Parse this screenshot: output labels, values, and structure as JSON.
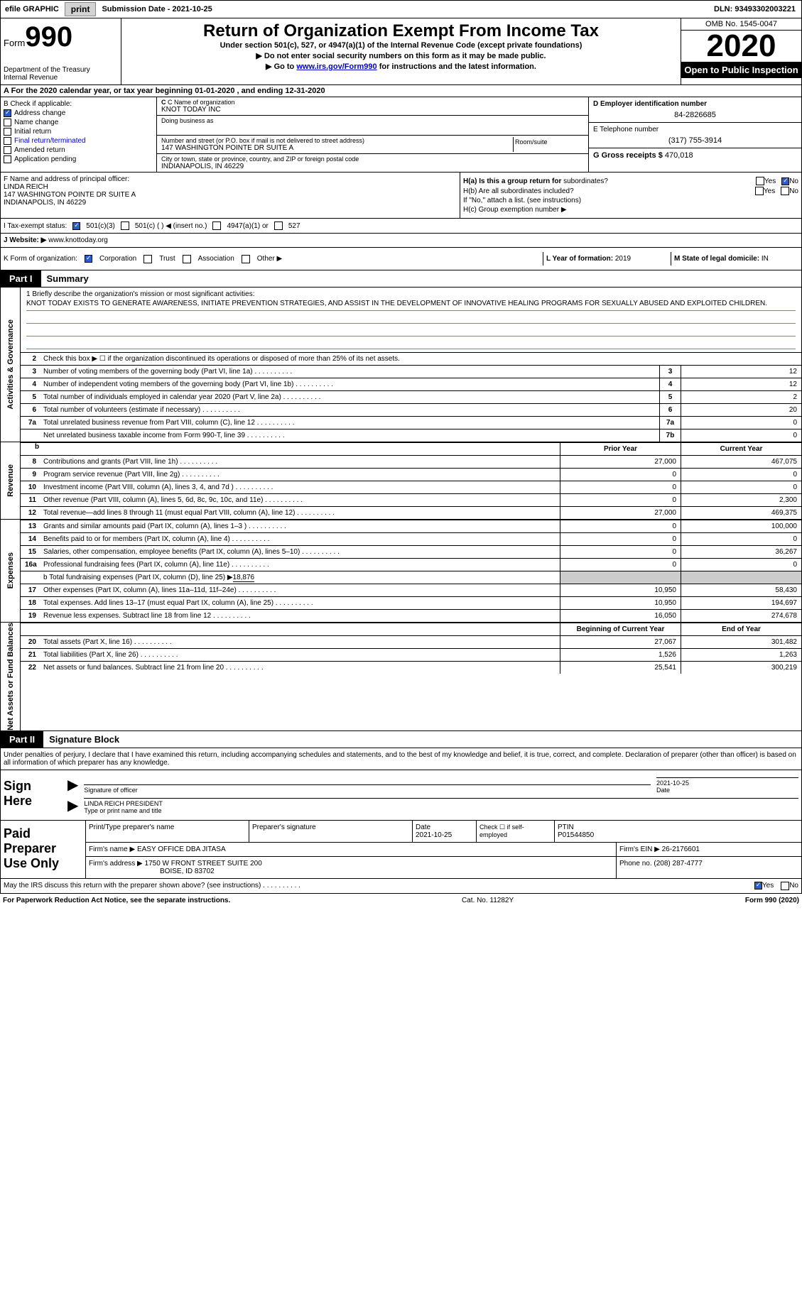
{
  "topbar": {
    "efile_label": "efile GRAPHIC",
    "print_btn": "print",
    "submission_label": "Submission Date - 2021-10-25",
    "dln": "DLN: 93493302003221"
  },
  "header": {
    "form_word": "Form",
    "form_num": "990",
    "dept": "Department of the Treasury\nInternal Revenue",
    "title": "Return of Organization Exempt From Income Tax",
    "subtitle": "Under section 501(c), 527, or 4947(a)(1) of the Internal Revenue Code (except private foundations)",
    "line1": "▶ Do not enter social security numbers on this form as it may be made public.",
    "line2_pre": "▶ Go to ",
    "line2_link": "www.irs.gov/Form990",
    "line2_post": " for instructions and the latest information.",
    "omb": "OMB No. 1545-0047",
    "year": "2020",
    "open_public": "Open to Public Inspection"
  },
  "row_a": "A For the 2020 calendar year, or tax year beginning 01-01-2020    , and ending 12-31-2020",
  "box_b": {
    "label": "B Check if applicable:",
    "address_change": "Address change",
    "name_change": "Name change",
    "initial_return": "Initial return",
    "final_return": "Final return/terminated",
    "amended_return": "Amended return",
    "application_pending": "Application pending"
  },
  "box_c": {
    "name_label": "C Name of organization",
    "name": "KNOT TODAY INC",
    "dba_label": "Doing business as",
    "dba": "",
    "street_label": "Number and street (or P.O. box if mail is not delivered to street address)",
    "street": "147 WASHINGTON POINTE DR SUITE A",
    "room_label": "Room/suite",
    "city_label": "City or town, state or province, country, and ZIP or foreign postal code",
    "city": "INDIANAPOLIS, IN  46229"
  },
  "box_d": {
    "ein_label": "D Employer identification number",
    "ein": "84-2826685",
    "phone_label": "E Telephone number",
    "phone": "(317) 755-3914",
    "gross_label": "G Gross receipts $",
    "gross": "470,018"
  },
  "box_f": {
    "label": "F  Name and address of principal officer:",
    "name": "LINDA REICH",
    "addr1": "147 WASHINGTON POINTE DR SUITE A",
    "addr2": "INDIANAPOLIS, IN  46229"
  },
  "box_h": {
    "ha_label": "H(a)  Is this a group return for",
    "ha_sub": "subordinates?",
    "hb_label": "H(b)  Are all subordinates included?",
    "hb_note": "If \"No,\" attach a list. (see instructions)",
    "hc_label": "H(c)  Group exemption number ▶",
    "yes": "Yes",
    "no": "No"
  },
  "row_i": {
    "label": "I    Tax-exempt status:",
    "opt1": "501(c)(3)",
    "opt2": "501(c) (  ) ◀ (insert no.)",
    "opt3": "4947(a)(1) or",
    "opt4": "527"
  },
  "row_j": {
    "label": "J   Website: ▶",
    "value": "www.knottoday.org"
  },
  "row_k": {
    "label": "K Form of organization:",
    "corp": "Corporation",
    "trust": "Trust",
    "assoc": "Association",
    "other": "Other ▶"
  },
  "row_l": {
    "label": "L Year of formation:",
    "value": "2019"
  },
  "row_m": {
    "label": "M State of legal domicile:",
    "value": "IN"
  },
  "part1": {
    "tag": "Part I",
    "title": "Summary"
  },
  "governance": {
    "vlabel": "Activities & Governance",
    "l1_label": "1   Briefly describe the organization's mission or most significant activities:",
    "mission": "KNOT TODAY EXISTS TO GENERATE AWARENESS, INITIATE PREVENTION STRATEGIES, AND ASSIST IN THE DEVELOPMENT OF INNOVATIVE HEALING PROGRAMS FOR SEXUALLY ABUSED AND EXPLOITED CHILDREN.",
    "l2": "Check this box ▶ ☐  if the organization discontinued its operations or disposed of more than 25% of its net assets.",
    "rows": [
      {
        "n": "3",
        "t": "Number of voting members of the governing body (Part VI, line 1a)",
        "nb": "3",
        "v": "12"
      },
      {
        "n": "4",
        "t": "Number of independent voting members of the governing body (Part VI, line 1b)",
        "nb": "4",
        "v": "12"
      },
      {
        "n": "5",
        "t": "Total number of individuals employed in calendar year 2020 (Part V, line 2a)",
        "nb": "5",
        "v": "2"
      },
      {
        "n": "6",
        "t": "Total number of volunteers (estimate if necessary)",
        "nb": "6",
        "v": "20"
      },
      {
        "n": "7a",
        "t": "Total unrelated business revenue from Part VIII, column (C), line 12",
        "nb": "7a",
        "v": "0"
      },
      {
        "n": "",
        "t": "Net unrelated business taxable income from Form 990-T, line 39",
        "nb": "7b",
        "v": "0"
      }
    ]
  },
  "revenue": {
    "vlabel": "Revenue",
    "hdr_prior": "Prior Year",
    "hdr_current": "Current Year",
    "rows": [
      {
        "n": "8",
        "t": "Contributions and grants (Part VIII, line 1h)",
        "v1": "27,000",
        "v2": "467,075"
      },
      {
        "n": "9",
        "t": "Program service revenue (Part VIII, line 2g)",
        "v1": "0",
        "v2": "0"
      },
      {
        "n": "10",
        "t": "Investment income (Part VIII, column (A), lines 3, 4, and 7d )",
        "v1": "0",
        "v2": "0"
      },
      {
        "n": "11",
        "t": "Other revenue (Part VIII, column (A), lines 5, 6d, 8c, 9c, 10c, and 11e)",
        "v1": "0",
        "v2": "2,300"
      },
      {
        "n": "12",
        "t": "Total revenue—add lines 8 through 11 (must equal Part VIII, column (A), line 12)",
        "v1": "27,000",
        "v2": "469,375"
      }
    ]
  },
  "expenses": {
    "vlabel": "Expenses",
    "rows": [
      {
        "n": "13",
        "t": "Grants and similar amounts paid (Part IX, column (A), lines 1–3 )",
        "v1": "0",
        "v2": "100,000"
      },
      {
        "n": "14",
        "t": "Benefits paid to or for members (Part IX, column (A), line 4)",
        "v1": "0",
        "v2": "0"
      },
      {
        "n": "15",
        "t": "Salaries, other compensation, employee benefits (Part IX, column (A), lines 5–10)",
        "v1": "0",
        "v2": "36,267"
      },
      {
        "n": "16a",
        "t": "Professional fundraising fees (Part IX, column (A), line 11e)",
        "v1": "0",
        "v2": "0"
      }
    ],
    "l16b_pre": "b   Total fundraising expenses (Part IX, column (D), line 25) ▶",
    "l16b_val": "18,876",
    "rows2": [
      {
        "n": "17",
        "t": "Other expenses (Part IX, column (A), lines 11a–11d, 11f–24e)",
        "v1": "10,950",
        "v2": "58,430"
      },
      {
        "n": "18",
        "t": "Total expenses. Add lines 13–17 (must equal Part IX, column (A), line 25)",
        "v1": "10,950",
        "v2": "194,697"
      },
      {
        "n": "19",
        "t": "Revenue less expenses. Subtract line 18 from line 12",
        "v1": "16,050",
        "v2": "274,678"
      }
    ]
  },
  "netassets": {
    "vlabel": "Net Assets or Fund Balances",
    "hdr_begin": "Beginning of Current Year",
    "hdr_end": "End of Year",
    "rows": [
      {
        "n": "20",
        "t": "Total assets (Part X, line 16)",
        "v1": "27,067",
        "v2": "301,482"
      },
      {
        "n": "21",
        "t": "Total liabilities (Part X, line 26)",
        "v1": "1,526",
        "v2": "1,263"
      },
      {
        "n": "22",
        "t": "Net assets or fund balances. Subtract line 21 from line 20",
        "v1": "25,541",
        "v2": "300,219"
      }
    ]
  },
  "part2": {
    "tag": "Part II",
    "title": "Signature Block"
  },
  "sig_intro": "Under penalties of perjury, I declare that I have examined this return, including accompanying schedules and statements, and to the best of my knowledge and belief, it is true, correct, and complete. Declaration of preparer (other than officer) is based on all information of which preparer has any knowledge.",
  "sign_here": {
    "label": "Sign Here",
    "sig_label": "Signature of officer",
    "date_label": "Date",
    "date": "2021-10-25",
    "name": "LINDA REICH  PRESIDENT",
    "type_label": "Type or print name and title"
  },
  "paid_prep": {
    "label": "Paid Preparer Use Only",
    "r1_c1": "Print/Type preparer's name",
    "r1_c2": "Preparer's signature",
    "r1_c3_label": "Date",
    "r1_c3": "2021-10-25",
    "r1_c4_label": "Check ☐  if self-employed",
    "r1_c5_label": "PTIN",
    "r1_c5": "P01544850",
    "r2_label": "Firm's name    ▶",
    "r2_val": "EASY OFFICE DBA JITASA",
    "r2_ein_label": "Firm's EIN ▶",
    "r2_ein": "26-2176601",
    "r3_label": "Firm's address ▶",
    "r3_val": "1750 W FRONT STREET SUITE 200",
    "r3_city": "BOISE, ID  83702",
    "r3_phone_label": "Phone no.",
    "r3_phone": "(208) 287-4777"
  },
  "discuss": {
    "text": "May the IRS discuss this return with the preparer shown above? (see instructions)",
    "yes": "Yes",
    "no": "No"
  },
  "footer": {
    "left": "For Paperwork Reduction Act Notice, see the separate instructions.",
    "mid": "Cat. No. 11282Y",
    "right": "Form 990 (2020)"
  }
}
